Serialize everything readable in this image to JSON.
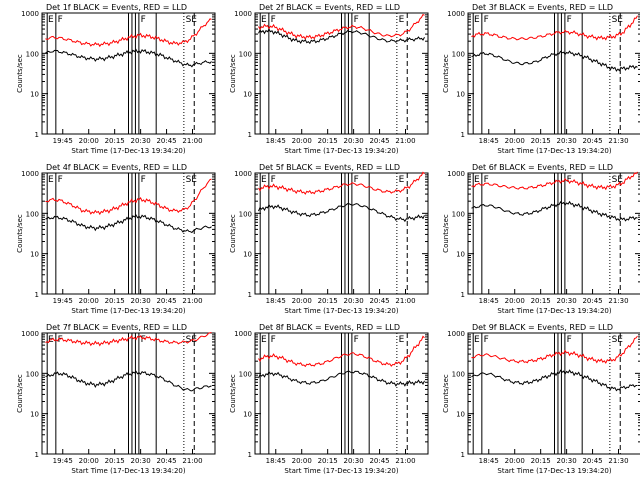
{
  "chart_data": [
    {
      "type": "line",
      "title": "Det 1f BLACK = Events, RED = LLD",
      "xlabel": "Start Time (17-Dec-13 19:34:20)",
      "ylabel": "Counts/sec",
      "yscale": "log",
      "ylim": [
        1,
        1000
      ],
      "yticks": [
        "1",
        "10",
        "100",
        "1000"
      ],
      "xticks": [
        "19:45",
        "20:00",
        "20:15",
        "20:30",
        "20:45",
        "21:00"
      ],
      "flags": [
        "E",
        "F",
        "F",
        "SE"
      ],
      "series": [
        {
          "color": "#ff0000",
          "values": [
            230,
            250,
            240,
            220,
            200,
            180,
            170,
            165,
            170,
            180,
            200,
            230,
            260,
            280,
            270,
            250,
            220,
            190,
            175,
            185,
            220,
            320,
            500,
            700
          ]
        },
        {
          "color": "#000000",
          "values": [
            100,
            115,
            110,
            100,
            90,
            80,
            75,
            72,
            74,
            80,
            90,
            100,
            110,
            115,
            110,
            100,
            90,
            75,
            65,
            55,
            50,
            55,
            60,
            62
          ]
        }
      ]
    },
    {
      "type": "line",
      "title": "Det 2f BLACK = Events, RED = LLD",
      "xlabel": "Start Time (17-Dec-13 19:34:20)",
      "ylabel": "Counts/sec",
      "yscale": "log",
      "ylim": [
        1,
        1000
      ],
      "yticks": [
        "1",
        "10",
        "100",
        "1000"
      ],
      "xticks": [
        "18:45",
        "20:00",
        "20:15",
        "20:30",
        "20:45",
        "21:00"
      ],
      "flags": [
        "E",
        "F",
        "F",
        "E"
      ],
      "series": [
        {
          "color": "#ff0000",
          "values": [
            440,
            470,
            460,
            400,
            330,
            280,
            260,
            250,
            260,
            290,
            330,
            380,
            430,
            460,
            440,
            390,
            330,
            290,
            270,
            280,
            300,
            400,
            600,
            900
          ]
        },
        {
          "color": "#000000",
          "values": [
            330,
            360,
            350,
            300,
            250,
            210,
            200,
            195,
            200,
            220,
            250,
            290,
            330,
            350,
            330,
            290,
            250,
            220,
            200,
            205,
            210,
            220,
            230,
            240
          ]
        }
      ]
    },
    {
      "type": "line",
      "title": "Det 3f BLACK = Events, RED = LLD",
      "xlabel": "Start Time (17-Dec-13 19:34:20)",
      "ylabel": "Counts/sec",
      "yscale": "log",
      "ylim": [
        1,
        1000
      ],
      "yticks": [
        "1",
        "10",
        "100",
        "1000"
      ],
      "xticks": [
        "18:45",
        "20:00",
        "20:15",
        "20:30",
        "20:45",
        "21:30"
      ],
      "flags": [
        "E",
        "F",
        "F",
        "SE"
      ],
      "series": [
        {
          "color": "#ff0000",
          "values": [
            270,
            300,
            310,
            290,
            260,
            240,
            230,
            230,
            235,
            250,
            270,
            300,
            330,
            340,
            330,
            300,
            270,
            250,
            240,
            250,
            270,
            330,
            500,
            800
          ]
        },
        {
          "color": "#000000",
          "values": [
            80,
            95,
            100,
            90,
            78,
            65,
            58,
            55,
            57,
            62,
            75,
            90,
            100,
            105,
            100,
            90,
            78,
            65,
            55,
            45,
            40,
            42,
            45,
            48
          ]
        }
      ]
    },
    {
      "type": "line",
      "title": "Det 4f BLACK = Events, RED = LLD",
      "xlabel": "Start Time (17-Dec-13 19:34:20)",
      "ylabel": "Counts/sec",
      "yscale": "log",
      "ylim": [
        1,
        1000
      ],
      "yticks": [
        "1",
        "10",
        "100",
        "1000"
      ],
      "xticks": [
        "19:45",
        "20:00",
        "20:15",
        "20:30",
        "20:45",
        "21:00"
      ],
      "flags": [
        "E",
        "F",
        "F",
        "SE"
      ],
      "series": [
        {
          "color": "#ff0000",
          "values": [
            200,
            220,
            210,
            180,
            150,
            120,
            110,
            105,
            110,
            120,
            140,
            170,
            200,
            220,
            210,
            180,
            150,
            125,
            115,
            120,
            150,
            250,
            450,
            700
          ]
        },
        {
          "color": "#000000",
          "values": [
            70,
            80,
            78,
            70,
            60,
            50,
            45,
            43,
            45,
            50,
            58,
            68,
            80,
            85,
            80,
            70,
            60,
            50,
            42,
            38,
            35,
            40,
            45,
            47
          ]
        }
      ]
    },
    {
      "type": "line",
      "title": "Det 5f BLACK = Events, RED = LLD",
      "xlabel": "Start Time (17-Dec-13 19:34:20)",
      "ylabel": "Counts/sec",
      "yscale": "log",
      "ylim": [
        1,
        1000
      ],
      "yticks": [
        "1",
        "10",
        "100",
        "1000"
      ],
      "xticks": [
        "18:45",
        "20:00",
        "20:15",
        "20:30",
        "20:45",
        "21:00"
      ],
      "flags": [
        "E",
        "F",
        "F",
        "E"
      ],
      "series": [
        {
          "color": "#ff0000",
          "values": [
            400,
            460,
            470,
            440,
            400,
            360,
            340,
            330,
            340,
            370,
            410,
            460,
            520,
            540,
            520,
            460,
            400,
            360,
            340,
            350,
            380,
            480,
            700,
            1000
          ]
        },
        {
          "color": "#000000",
          "values": [
            120,
            140,
            150,
            140,
            120,
            105,
            95,
            90,
            95,
            105,
            120,
            140,
            160,
            170,
            160,
            140,
            120,
            100,
            85,
            75,
            70,
            75,
            80,
            85
          ]
        }
      ]
    },
    {
      "type": "line",
      "title": "Det 6f BLACK = Events, RED = LLD",
      "xlabel": "Start Time (17-Dec-13 19:34:20)",
      "ylabel": "Counts/sec",
      "yscale": "log",
      "ylim": [
        1,
        1000
      ],
      "yticks": [
        "1",
        "10",
        "100",
        "1000"
      ],
      "xticks": [
        "18:45",
        "20:00",
        "20:15",
        "20:30",
        "20:45",
        "21:30"
      ],
      "flags": [
        "E",
        "F",
        "F",
        "SE"
      ],
      "series": [
        {
          "color": "#ff0000",
          "values": [
            480,
            520,
            540,
            520,
            480,
            450,
            430,
            420,
            430,
            460,
            500,
            560,
            620,
            650,
            620,
            560,
            500,
            460,
            440,
            450,
            480,
            580,
            800,
            1000
          ]
        },
        {
          "color": "#000000",
          "values": [
            130,
            150,
            160,
            150,
            130,
            110,
            100,
            95,
            100,
            110,
            130,
            150,
            170,
            180,
            170,
            150,
            130,
            110,
            95,
            85,
            75,
            70,
            75,
            80
          ]
        }
      ]
    },
    {
      "type": "line",
      "title": "Det 7f BLACK = Events, RED = LLD",
      "xlabel": "Start Time (17-Dec-13 19:34:20)",
      "ylabel": "Counts/sec",
      "yscale": "log",
      "ylim": [
        1,
        1000
      ],
      "yticks": [
        "1",
        "10",
        "100",
        "1000"
      ],
      "xticks": [
        "19:45",
        "20:00",
        "20:15",
        "20:30",
        "20:45",
        "21:00"
      ],
      "flags": [
        "E",
        "F",
        "F",
        "SE"
      ],
      "series": [
        {
          "color": "#ff0000",
          "values": [
            600,
            680,
            700,
            660,
            620,
            580,
            560,
            550,
            560,
            600,
            650,
            700,
            760,
            780,
            760,
            700,
            640,
            600,
            580,
            590,
            620,
            700,
            850,
            1000
          ]
        },
        {
          "color": "#000000",
          "values": [
            80,
            95,
            100,
            90,
            75,
            62,
            55,
            52,
            55,
            62,
            75,
            90,
            100,
            105,
            100,
            90,
            78,
            62,
            50,
            42,
            38,
            42,
            46,
            50
          ]
        }
      ]
    },
    {
      "type": "line",
      "title": "Det 8f BLACK = Events, RED = LLD",
      "xlabel": "Start Time (17-Dec-13 19:34:20)",
      "ylabel": "Counts/sec",
      "yscale": "log",
      "ylim": [
        1,
        1000
      ],
      "yticks": [
        "1",
        "10",
        "100",
        "1000"
      ],
      "xticks": [
        "18:45",
        "20:00",
        "20:15",
        "20:30",
        "20:45",
        "21:00"
      ],
      "flags": [
        "E",
        "F",
        "F",
        "E"
      ],
      "series": [
        {
          "color": "#ff0000",
          "values": [
            220,
            260,
            270,
            250,
            210,
            180,
            165,
            160,
            165,
            180,
            210,
            250,
            290,
            310,
            290,
            250,
            210,
            180,
            165,
            170,
            200,
            300,
            500,
            800
          ]
        },
        {
          "color": "#000000",
          "values": [
            80,
            95,
            100,
            92,
            78,
            66,
            60,
            57,
            60,
            66,
            78,
            92,
            105,
            110,
            105,
            92,
            78,
            66,
            58,
            55,
            55,
            58,
            60,
            62
          ]
        }
      ]
    },
    {
      "type": "line",
      "title": "Det 9f BLACK = Events, RED = LLD",
      "xlabel": "Start Time (17-Dec-13 19:34:20)",
      "ylabel": "Counts/sec",
      "yscale": "log",
      "ylim": [
        1,
        1000
      ],
      "yticks": [
        "1",
        "10",
        "100",
        "1000"
      ],
      "xticks": [
        "18:45",
        "20:00",
        "20:15",
        "20:30",
        "20:45",
        "21:30"
      ],
      "flags": [
        "E",
        "F",
        "F",
        "SE"
      ],
      "series": [
        {
          "color": "#ff0000",
          "values": [
            250,
            280,
            290,
            270,
            240,
            215,
            200,
            195,
            200,
            215,
            240,
            280,
            310,
            330,
            310,
            280,
            240,
            215,
            200,
            205,
            230,
            320,
            500,
            800
          ]
        },
        {
          "color": "#000000",
          "values": [
            80,
            95,
            100,
            92,
            78,
            66,
            60,
            57,
            60,
            66,
            78,
            92,
            105,
            110,
            105,
            92,
            78,
            66,
            55,
            45,
            40,
            44,
            48,
            52
          ]
        }
      ]
    }
  ]
}
